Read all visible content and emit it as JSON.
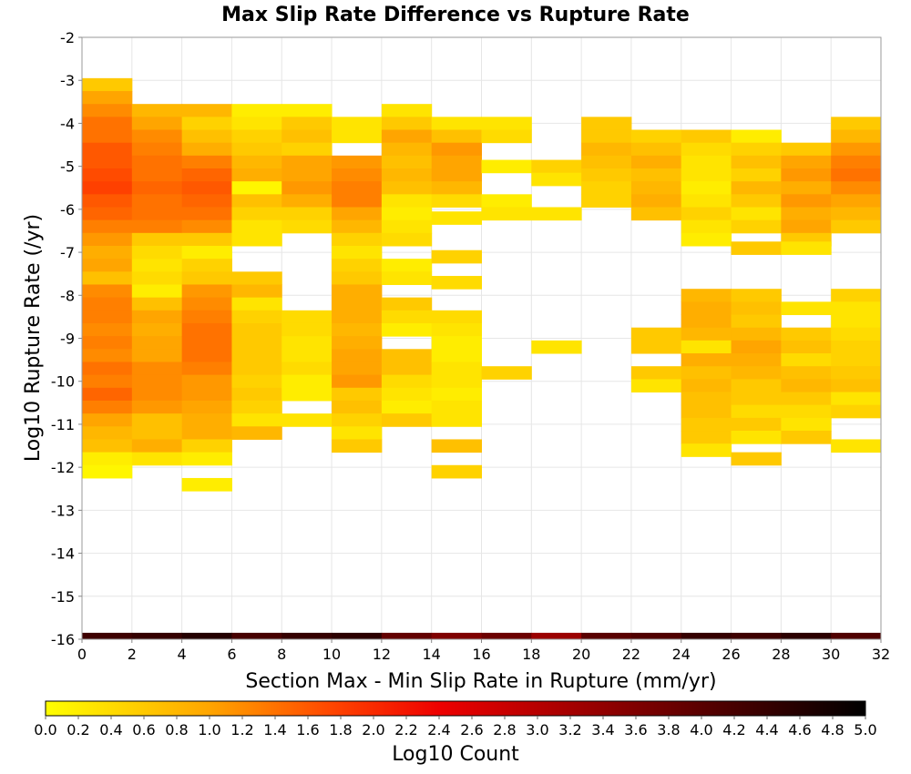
{
  "chart_data": {
    "type": "heatmap",
    "title": "Max Slip Rate Difference vs Rupture Rate",
    "xlabel": "Section Max - Min Slip Rate in Rupture (mm/yr)",
    "ylabel": "Log10 Rupture Rate (/yr)",
    "xlim": [
      0,
      32
    ],
    "ylim": [
      -16,
      -2
    ],
    "x_ticks": [
      "0",
      "2",
      "4",
      "6",
      "8",
      "10",
      "12",
      "14",
      "16",
      "18",
      "20",
      "22",
      "24",
      "26",
      "28",
      "30",
      "32"
    ],
    "y_ticks": [
      "-2",
      "-3",
      "-4",
      "-5",
      "-6",
      "-7",
      "-8",
      "-9",
      "-10",
      "-11",
      "-12",
      "-13",
      "-14",
      "-15",
      "-16"
    ],
    "grid": true,
    "x_bin_width": 2,
    "y_bin_width": 0.3,
    "colorbar": {
      "label": "Log10 Count",
      "range": [
        0.0,
        5.0
      ],
      "ticks": [
        "0.0",
        "0.2",
        "0.4",
        "0.6",
        "0.8",
        "1.0",
        "1.2",
        "1.4",
        "1.6",
        "1.8",
        "2.0",
        "2.2",
        "2.4",
        "2.6",
        "2.8",
        "3.0",
        "3.2",
        "3.4",
        "3.6",
        "3.8",
        "4.0",
        "4.2",
        "4.4",
        "4.6",
        "4.8",
        "5.0"
      ],
      "colors": [
        "#ffff00",
        "#ffa500",
        "#ff4500",
        "#ee0000",
        "#a00000",
        "#500000",
        "#000000"
      ]
    },
    "bins": [
      {
        "x": 0,
        "y_values": [
          -3.1,
          -3.4,
          -3.7,
          -4.0,
          -4.3,
          -4.6,
          -4.9,
          -5.2,
          -5.5,
          -5.8,
          -6.1,
          -6.4,
          -6.7,
          -7.0,
          -7.3,
          -7.6,
          -7.9,
          -8.2,
          -8.5,
          -8.8,
          -9.1,
          -9.4,
          -9.7,
          -10.0,
          -10.3,
          -10.6,
          -10.9,
          -11.2,
          -11.5,
          -11.8,
          -12.1
        ],
        "log10_counts": [
          0.6,
          1.0,
          1.2,
          1.4,
          1.4,
          1.6,
          1.6,
          1.7,
          1.8,
          1.6,
          1.5,
          1.3,
          1.1,
          0.9,
          1.0,
          0.7,
          1.2,
          1.3,
          1.3,
          1.2,
          1.3,
          1.2,
          1.4,
          1.3,
          1.5,
          1.3,
          1.0,
          0.8,
          0.7,
          0.2,
          0.1
        ]
      },
      {
        "x": 2,
        "y_values": [
          -3.7,
          -4.0,
          -4.3,
          -4.6,
          -4.9,
          -5.2,
          -5.5,
          -5.8,
          -6.1,
          -6.4,
          -6.7,
          -7.0,
          -7.3,
          -7.6,
          -7.9,
          -8.2,
          -8.5,
          -8.8,
          -9.1,
          -9.4,
          -9.7,
          -10.0,
          -10.3,
          -10.6,
          -10.9,
          -11.2,
          -11.5,
          -11.8
        ],
        "log10_counts": [
          0.8,
          1.0,
          1.2,
          1.3,
          1.4,
          1.4,
          1.5,
          1.4,
          1.4,
          1.3,
          0.6,
          0.4,
          0.3,
          0.4,
          0.2,
          0.7,
          1.0,
          0.9,
          1.0,
          1.0,
          1.2,
          1.2,
          1.2,
          1.1,
          0.7,
          0.7,
          0.9,
          0.3
        ]
      },
      {
        "x": 4,
        "y_values": [
          -3.7,
          -4.0,
          -4.3,
          -4.6,
          -4.9,
          -5.2,
          -5.5,
          -5.8,
          -6.1,
          -6.4,
          -6.7,
          -7.0,
          -7.3,
          -7.6,
          -7.9,
          -8.2,
          -8.5,
          -8.8,
          -9.1,
          -9.4,
          -9.7,
          -10.0,
          -10.3,
          -10.6,
          -10.9,
          -11.2,
          -11.5,
          -11.8,
          -12.4
        ],
        "log10_counts": [
          0.8,
          0.5,
          0.7,
          0.9,
          1.3,
          1.5,
          1.6,
          1.5,
          1.4,
          1.2,
          0.6,
          0.2,
          0.5,
          0.6,
          1.1,
          1.2,
          1.3,
          1.4,
          1.4,
          1.4,
          1.3,
          1.1,
          1.1,
          1.0,
          0.9,
          0.9,
          0.5,
          0.2,
          0.2
        ]
      },
      {
        "x": 6,
        "y_values": [
          -3.7,
          -4.0,
          -4.3,
          -4.6,
          -4.9,
          -5.2,
          -5.5,
          -5.8,
          -6.1,
          -6.4,
          -6.7,
          -7.6,
          -7.9,
          -8.2,
          -8.5,
          -8.8,
          -9.1,
          -9.4,
          -9.7,
          -10.0,
          -10.3,
          -10.6,
          -10.9,
          -11.2
        ],
        "log10_counts": [
          0.2,
          0.3,
          0.5,
          0.6,
          0.8,
          0.9,
          0.1,
          0.7,
          0.5,
          0.3,
          0.3,
          0.6,
          0.8,
          0.3,
          0.5,
          0.6,
          0.6,
          0.6,
          0.6,
          0.5,
          0.6,
          0.5,
          0.3,
          0.8
        ]
      },
      {
        "x": 8,
        "y_values": [
          -3.7,
          -4.0,
          -4.3,
          -4.6,
          -4.9,
          -5.2,
          -5.5,
          -5.8,
          -6.1,
          -6.4,
          -8.5,
          -8.8,
          -9.1,
          -9.4,
          -9.7,
          -10.0,
          -10.3,
          -10.9
        ],
        "log10_counts": [
          0.2,
          0.6,
          0.7,
          0.5,
          1.0,
          1.0,
          1.1,
          0.9,
          0.5,
          0.4,
          0.4,
          0.4,
          0.3,
          0.3,
          0.4,
          0.2,
          0.2,
          0.3
        ]
      },
      {
        "x": 10,
        "y_values": [
          -4.0,
          -4.3,
          -4.9,
          -5.2,
          -5.5,
          -5.8,
          -6.1,
          -6.4,
          -6.7,
          -7.0,
          -7.3,
          -7.6,
          -7.9,
          -8.2,
          -8.5,
          -8.8,
          -9.1,
          -9.4,
          -9.7,
          -10.0,
          -10.3,
          -10.6,
          -10.9,
          -11.2,
          -11.5
        ],
        "log10_counts": [
          0.3,
          0.3,
          1.1,
          1.2,
          1.3,
          1.3,
          1.0,
          0.8,
          0.5,
          0.3,
          0.5,
          0.6,
          0.9,
          0.9,
          0.9,
          0.8,
          0.9,
          1.0,
          1.0,
          1.1,
          0.6,
          0.7,
          0.5,
          0.3,
          0.6
        ]
      },
      {
        "x": 12,
        "y_values": [
          -3.7,
          -4.0,
          -4.3,
          -4.6,
          -4.9,
          -5.2,
          -5.5,
          -5.8,
          -6.1,
          -6.4,
          -6.7,
          -7.3,
          -7.6,
          -8.2,
          -8.5,
          -8.8,
          -9.4,
          -9.7,
          -10.0,
          -10.3,
          -10.6,
          -10.9
        ],
        "log10_counts": [
          0.3,
          0.6,
          1.0,
          0.8,
          0.7,
          0.8,
          0.7,
          0.3,
          0.2,
          0.3,
          0.4,
          0.2,
          0.3,
          0.6,
          0.4,
          0.2,
          0.7,
          0.7,
          0.4,
          0.3,
          0.2,
          0.6
        ]
      },
      {
        "x": 14,
        "y_values": [
          -4.0,
          -4.3,
          -4.6,
          -4.9,
          -5.2,
          -5.5,
          -5.8,
          -6.2,
          -7.1,
          -7.7,
          -8.5,
          -8.8,
          -9.1,
          -9.4,
          -9.7,
          -10.0,
          -10.3,
          -10.6,
          -10.9,
          -11.5,
          -12.1
        ],
        "log10_counts": [
          0.3,
          0.7,
          1.1,
          1.0,
          1.0,
          0.8,
          0.4,
          0.3,
          0.5,
          0.4,
          0.4,
          0.3,
          0.2,
          0.2,
          0.3,
          0.3,
          0.2,
          0.3,
          0.3,
          0.7,
          0.5
        ]
      },
      {
        "x": 16,
        "y_values": [
          -4.0,
          -4.3,
          -5.0,
          -5.8,
          -6.1,
          -9.8
        ],
        "log10_counts": [
          0.3,
          0.4,
          0.2,
          0.2,
          0.3,
          0.5
        ]
      },
      {
        "x": 18,
        "y_values": [
          -5.0,
          -5.3,
          -6.1,
          -9.2
        ],
        "log10_counts": [
          0.5,
          0.3,
          0.3,
          0.3
        ]
      },
      {
        "x": 20,
        "y_values": [
          -4.0,
          -4.3,
          -4.6,
          -4.9,
          -5.2,
          -5.5,
          -5.8
        ],
        "log10_counts": [
          0.6,
          0.6,
          0.8,
          0.7,
          0.6,
          0.5,
          0.5
        ]
      },
      {
        "x": 22,
        "y_values": [
          -4.3,
          -4.6,
          -4.9,
          -5.2,
          -5.5,
          -5.8,
          -6.1,
          -8.9,
          -9.2,
          -9.8,
          -10.1
        ],
        "log10_counts": [
          0.5,
          0.7,
          0.9,
          0.7,
          0.8,
          0.9,
          0.7,
          0.6,
          0.6,
          0.6,
          0.3
        ]
      },
      {
        "x": 24,
        "y_values": [
          -4.3,
          -4.6,
          -4.9,
          -5.2,
          -5.5,
          -5.8,
          -6.1,
          -6.4,
          -6.7,
          -8.0,
          -8.3,
          -8.6,
          -8.9,
          -9.2,
          -9.5,
          -9.8,
          -10.1,
          -10.4,
          -10.7,
          -11.0,
          -11.3,
          -11.6
        ],
        "log10_counts": [
          0.6,
          0.4,
          0.3,
          0.3,
          0.2,
          0.3,
          0.5,
          0.3,
          0.2,
          0.8,
          0.9,
          0.9,
          0.8,
          0.3,
          0.9,
          0.7,
          0.8,
          0.7,
          0.7,
          0.6,
          0.6,
          0.3
        ]
      },
      {
        "x": 26,
        "y_values": [
          -4.3,
          -4.6,
          -4.9,
          -5.2,
          -5.5,
          -5.8,
          -6.1,
          -6.4,
          -6.9,
          -8.0,
          -8.3,
          -8.6,
          -8.9,
          -9.2,
          -9.5,
          -9.8,
          -10.1,
          -10.4,
          -10.7,
          -11.0,
          -11.3,
          -11.8
        ],
        "log10_counts": [
          0.2,
          0.5,
          0.7,
          0.5,
          0.8,
          0.6,
          0.3,
          0.5,
          0.6,
          0.6,
          0.7,
          0.6,
          0.8,
          1.0,
          0.9,
          0.8,
          0.6,
          0.6,
          0.4,
          0.6,
          0.3,
          0.6
        ]
      },
      {
        "x": 28,
        "y_values": [
          -4.6,
          -4.9,
          -5.2,
          -5.5,
          -5.8,
          -6.1,
          -6.4,
          -6.7,
          -6.9,
          -8.3,
          -8.9,
          -9.2,
          -9.5,
          -9.8,
          -10.1,
          -10.4,
          -10.7,
          -11.0,
          -11.3
        ],
        "log10_counts": [
          0.6,
          1.0,
          1.1,
          0.9,
          1.1,
          0.9,
          1.0,
          0.6,
          0.3,
          0.3,
          0.6,
          0.7,
          0.4,
          0.7,
          0.8,
          0.6,
          0.4,
          0.3,
          0.6
        ]
      },
      {
        "x": 30,
        "y_values": [
          -4.0,
          -4.3,
          -4.6,
          -4.9,
          -5.2,
          -5.5,
          -5.8,
          -6.1,
          -6.4,
          -8.0,
          -8.3,
          -8.6,
          -8.9,
          -9.2,
          -9.5,
          -9.8,
          -10.1,
          -10.4,
          -10.7,
          -11.5
        ],
        "log10_counts": [
          0.6,
          0.8,
          1.1,
          1.3,
          1.4,
          1.2,
          1.0,
          0.8,
          0.6,
          0.5,
          0.3,
          0.3,
          0.4,
          0.5,
          0.5,
          0.6,
          0.7,
          0.3,
          0.5,
          0.3
        ]
      }
    ],
    "bottom_row": {
      "y": -16,
      "x_values": [
        0,
        2,
        4,
        6,
        8,
        10,
        12,
        14,
        16,
        18,
        20,
        22,
        24,
        26,
        28,
        30
      ],
      "log10_counts": [
        4.3,
        4.4,
        4.6,
        4.2,
        4.4,
        4.5,
        3.9,
        3.6,
        3.8,
        3.3,
        4.0,
        4.1,
        4.4,
        4.3,
        4.5,
        4.1
      ]
    }
  }
}
